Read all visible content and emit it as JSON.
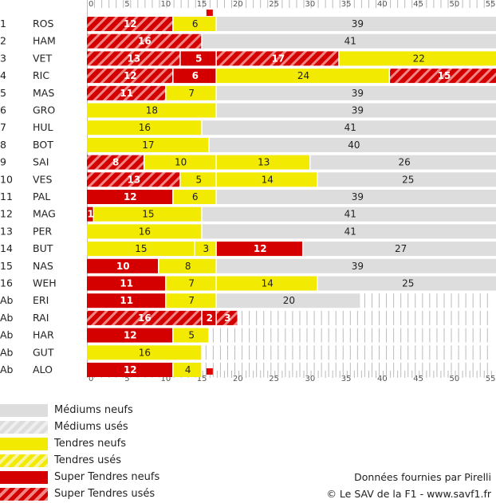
{
  "chart_data": {
    "type": "bar",
    "orientation": "horizontal-stacked",
    "title": "",
    "xlabel": "",
    "ylabel": "",
    "xlim": [
      0,
      56
    ],
    "ticks": [
      "0",
      "5",
      "10",
      "15",
      "20",
      "25",
      "30",
      "35",
      "40",
      "45",
      "50",
      "55"
    ],
    "tick_values": [
      0,
      5,
      10,
      15,
      20,
      25,
      30,
      35,
      40,
      45,
      50,
      55
    ],
    "marker_lap": 17,
    "compounds": {
      "MN": {
        "label": "Médiums neufs",
        "color": "#dddddd",
        "hatch": false
      },
      "MU": {
        "label": "Médiums usés",
        "color": "#dddddd",
        "hatch": true
      },
      "TN": {
        "label": "Tendres neufs",
        "color": "#f2ea00",
        "hatch": false
      },
      "TU": {
        "label": "Tendres usés",
        "color": "#f2ea00",
        "hatch": true
      },
      "SN": {
        "label": "Super Tendres neufs",
        "color": "#d40000",
        "hatch": false
      },
      "SU": {
        "label": "Super Tendres usés",
        "color": "#d40000",
        "hatch": true
      }
    },
    "rows": [
      {
        "pos": "1",
        "driver": "ROS",
        "stints": [
          {
            "c": "SU",
            "laps": 12
          },
          {
            "c": "TN",
            "laps": 6
          },
          {
            "c": "MN",
            "laps": 39
          }
        ]
      },
      {
        "pos": "2",
        "driver": "HAM",
        "stints": [
          {
            "c": "SU",
            "laps": 16
          },
          {
            "c": "MN",
            "laps": 41
          }
        ]
      },
      {
        "pos": "3",
        "driver": "VET",
        "stints": [
          {
            "c": "SU",
            "laps": 13
          },
          {
            "c": "SN",
            "laps": 5
          },
          {
            "c": "SU",
            "laps": 17
          },
          {
            "c": "TN",
            "laps": 22
          }
        ]
      },
      {
        "pos": "4",
        "driver": "RIC",
        "stints": [
          {
            "c": "SU",
            "laps": 12
          },
          {
            "c": "SN",
            "laps": 6
          },
          {
            "c": "TN",
            "laps": 24
          },
          {
            "c": "SU",
            "laps": 15
          }
        ]
      },
      {
        "pos": "5",
        "driver": "MAS",
        "stints": [
          {
            "c": "SU",
            "laps": 11
          },
          {
            "c": "TN",
            "laps": 7
          },
          {
            "c": "MN",
            "laps": 39
          }
        ]
      },
      {
        "pos": "6",
        "driver": "GRO",
        "stints": [
          {
            "c": "TN",
            "laps": 18
          },
          {
            "c": "MN",
            "laps": 39
          }
        ]
      },
      {
        "pos": "7",
        "driver": "HUL",
        "stints": [
          {
            "c": "TN",
            "laps": 16
          },
          {
            "c": "MN",
            "laps": 41
          }
        ]
      },
      {
        "pos": "8",
        "driver": "BOT",
        "stints": [
          {
            "c": "TN",
            "laps": 17
          },
          {
            "c": "MN",
            "laps": 40
          }
        ]
      },
      {
        "pos": "9",
        "driver": "SAI",
        "stints": [
          {
            "c": "SU",
            "laps": 8
          },
          {
            "c": "TN",
            "laps": 10
          },
          {
            "c": "TN",
            "laps": 13
          },
          {
            "c": "MN",
            "laps": 26
          }
        ]
      },
      {
        "pos": "10",
        "driver": "VES",
        "stints": [
          {
            "c": "SU",
            "laps": 13
          },
          {
            "c": "TN",
            "laps": 5
          },
          {
            "c": "TN",
            "laps": 14
          },
          {
            "c": "MN",
            "laps": 25
          }
        ]
      },
      {
        "pos": "11",
        "driver": "PAL",
        "stints": [
          {
            "c": "SN",
            "laps": 12
          },
          {
            "c": "TN",
            "laps": 6
          },
          {
            "c": "MN",
            "laps": 39
          }
        ]
      },
      {
        "pos": "12",
        "driver": "MAG",
        "stints": [
          {
            "c": "SN",
            "laps": 1
          },
          {
            "c": "TN",
            "laps": 15
          },
          {
            "c": "MN",
            "laps": 41
          }
        ]
      },
      {
        "pos": "13",
        "driver": "PER",
        "stints": [
          {
            "c": "TN",
            "laps": 16
          },
          {
            "c": "MN",
            "laps": 41
          }
        ]
      },
      {
        "pos": "14",
        "driver": "BUT",
        "stints": [
          {
            "c": "TN",
            "laps": 15
          },
          {
            "c": "TN",
            "laps": 3
          },
          {
            "c": "SN",
            "laps": 12
          },
          {
            "c": "MN",
            "laps": 27
          }
        ]
      },
      {
        "pos": "15",
        "driver": "NAS",
        "stints": [
          {
            "c": "SN",
            "laps": 10
          },
          {
            "c": "TN",
            "laps": 8
          },
          {
            "c": "MN",
            "laps": 39
          }
        ]
      },
      {
        "pos": "16",
        "driver": "WEH",
        "stints": [
          {
            "c": "SN",
            "laps": 11
          },
          {
            "c": "TN",
            "laps": 7
          },
          {
            "c": "TN",
            "laps": 14
          },
          {
            "c": "MN",
            "laps": 25
          }
        ]
      },
      {
        "pos": "Ab",
        "driver": "ERI",
        "stints": [
          {
            "c": "SN",
            "laps": 11
          },
          {
            "c": "TN",
            "laps": 7
          },
          {
            "c": "MN",
            "laps": 20
          }
        ]
      },
      {
        "pos": "Ab",
        "driver": "RAI",
        "stints": [
          {
            "c": "SU",
            "laps": 16
          },
          {
            "c": "SN",
            "laps": 2
          },
          {
            "c": "SU",
            "laps": 3
          }
        ]
      },
      {
        "pos": "Ab",
        "driver": "HAR",
        "stints": [
          {
            "c": "SN",
            "laps": 12
          },
          {
            "c": "TN",
            "laps": 5
          }
        ]
      },
      {
        "pos": "Ab",
        "driver": "GUT",
        "stints": [
          {
            "c": "TN",
            "laps": 16
          }
        ]
      },
      {
        "pos": "Ab",
        "driver": "ALO",
        "stints": [
          {
            "c": "SN",
            "laps": 12
          },
          {
            "c": "TN",
            "laps": 4
          }
        ]
      }
    ]
  },
  "legend": {
    "items": [
      {
        "key": "MN",
        "label": "Médiums neufs"
      },
      {
        "key": "MU",
        "label": "Médiums usés"
      },
      {
        "key": "TN",
        "label": "Tendres neufs"
      },
      {
        "key": "TU",
        "label": "Tendres usés"
      },
      {
        "key": "SN",
        "label": "Super Tendres neufs"
      },
      {
        "key": "SU",
        "label": "Super Tendres usés"
      }
    ]
  },
  "credits": {
    "source": "Données fournies par Pirelli",
    "copyright": "© Le SAV de la F1 - www.savf1.fr"
  }
}
